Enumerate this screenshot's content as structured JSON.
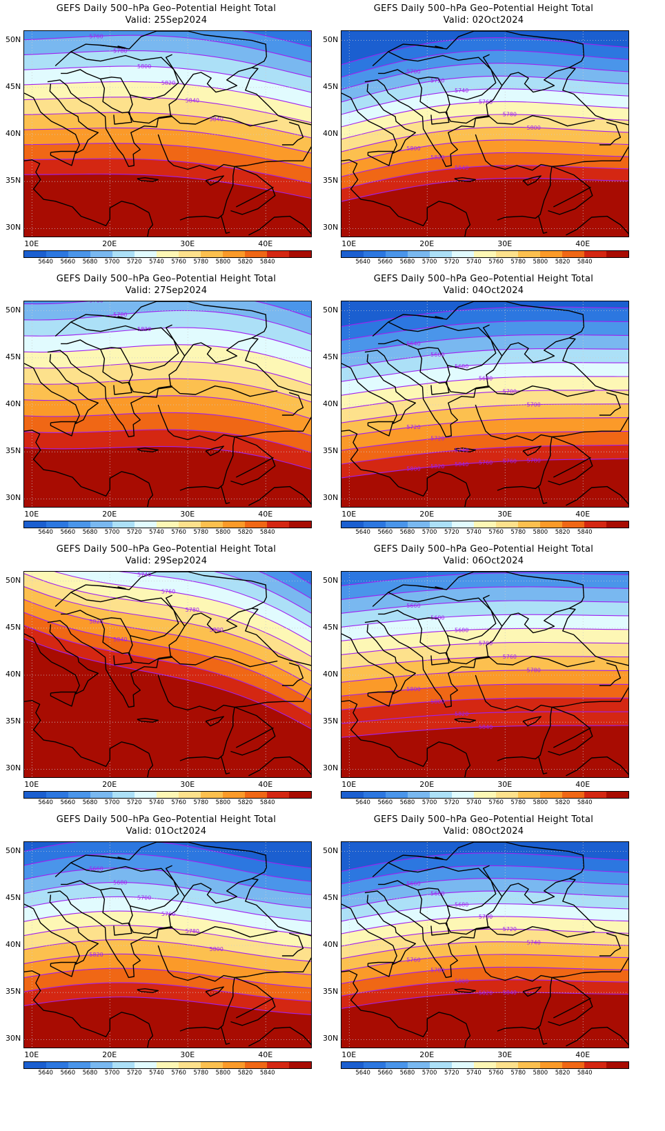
{
  "figure": {
    "title_line": "GEFS Daily 500–hPa Geo–Potential Height Total",
    "panels": [
      {
        "valid": "Valid: 25Sep2024",
        "contour_labels": [
          "5760",
          "5780",
          "5800",
          "5820",
          "5840",
          "5840"
        ]
      },
      {
        "valid": "Valid: 02Oct2024",
        "contour_labels": [
          "5700",
          "5720",
          "5740",
          "5760",
          "5780",
          "5800",
          "5800",
          "5820",
          "5840"
        ]
      },
      {
        "valid": "Valid: 27Sep2024",
        "contour_labels": [
          "5760",
          "5780",
          "5820"
        ]
      },
      {
        "valid": "Valid: 04Oct2024",
        "contour_labels": [
          "5640",
          "5660",
          "5680",
          "5680",
          "5700",
          "5700",
          "5720",
          "5720",
          "5740",
          "5760",
          "5760",
          "5780",
          "5800",
          "5820",
          "5840"
        ]
      },
      {
        "valid": "Valid: 29Sep2024",
        "contour_labels": [
          "5680",
          "5700",
          "5740",
          "5760",
          "5780",
          "5800",
          "5820",
          "5840"
        ]
      },
      {
        "valid": "Valid: 06Oct2024",
        "contour_labels": [
          "5660",
          "5680",
          "5680",
          "5700",
          "5760",
          "5780",
          "5800",
          "5800",
          "5820",
          "5840"
        ]
      },
      {
        "valid": "Valid: 01Oct2024",
        "contour_labels": [
          "5660",
          "5680",
          "5700",
          "5760",
          "5780",
          "5800",
          "5820"
        ]
      },
      {
        "valid": "Valid: 08Oct2024",
        "contour_labels": [
          "5660",
          "5680",
          "5680",
          "5700",
          "5720",
          "5740",
          "5760",
          "5780",
          "5800",
          "5820",
          "5840"
        ]
      }
    ],
    "lat_labels": [
      "50N",
      "45N",
      "40N",
      "35N",
      "30N"
    ],
    "lon_labels": [
      "10E",
      "20E",
      "30E",
      "40E"
    ],
    "colorbar": {
      "labels": [
        "5640",
        "5660",
        "5680",
        "5700",
        "5720",
        "5740",
        "5760",
        "5780",
        "5800",
        "5820",
        "5840"
      ],
      "colors": [
        "#1b5fd0",
        "#2c77e0",
        "#4a95ea",
        "#79b8f0",
        "#ace0f7",
        "#e1fbfe",
        "#fdf7b5",
        "#fde18c",
        "#fcc04f",
        "#fb9a29",
        "#f06715",
        "#d42712",
        "#a80c02"
      ]
    },
    "contour_color": "#a020f0",
    "country_border_color": "#000000"
  }
}
